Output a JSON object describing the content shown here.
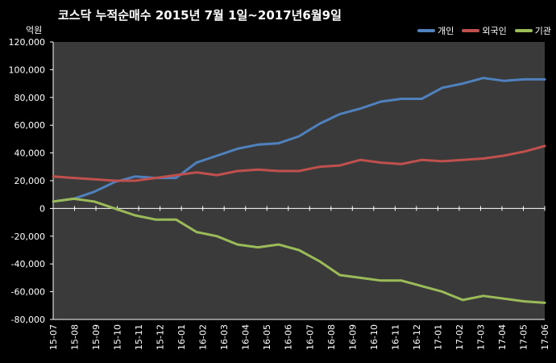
{
  "chart_data": {
    "type": "line",
    "title": "코스닥  누적순매수 2015년 7월 1일~2017년6월9일",
    "y_unit_label": "억원",
    "ylim": [
      -80000,
      120000
    ],
    "y_ticks": [
      -80000,
      -60000,
      -40000,
      -20000,
      0,
      20000,
      40000,
      60000,
      80000,
      100000,
      120000
    ],
    "y_tick_labels": [
      "-80,000",
      "-60,000",
      "-40,000",
      "-20,000",
      "0",
      "20,000",
      "40,000",
      "60,000",
      "80,000",
      "100,000",
      "120,000"
    ],
    "x_tick_labels": [
      "15-07",
      "15-08",
      "15-09",
      "15-10",
      "15-11",
      "15-12",
      "16-01",
      "16-02",
      "16-03",
      "16-04",
      "16-05",
      "16-06",
      "16-07",
      "16-08",
      "16-09",
      "16-10",
      "16-11",
      "16-12",
      "17-01",
      "17-02",
      "17-03",
      "17-04",
      "17-05",
      "17-06"
    ],
    "legend_position": "top-right",
    "grid": false,
    "colors": {
      "background": "#000000",
      "plot_area": "#3a3a3a",
      "text": "#ffffff"
    },
    "series": [
      {
        "name": "개인",
        "color": "#4f81bd",
        "values": [
          5000,
          7000,
          12000,
          19000,
          23000,
          22000,
          22000,
          33000,
          38000,
          43000,
          46000,
          47000,
          52000,
          61000,
          68000,
          72000,
          77000,
          79000,
          79000,
          87000,
          90000,
          94000,
          92000,
          93000,
          93000
        ]
      },
      {
        "name": "외국인",
        "color": "#c0504d",
        "values": [
          23000,
          22000,
          21000,
          20000,
          20000,
          22000,
          24000,
          26000,
          24000,
          27000,
          28000,
          27000,
          27000,
          30000,
          31000,
          35000,
          33000,
          32000,
          35000,
          34000,
          35000,
          36000,
          38000,
          41000,
          45000
        ]
      },
      {
        "name": "기관",
        "color": "#9bbb59",
        "values": [
          5000,
          7000,
          5000,
          0,
          -5000,
          -8000,
          -8000,
          -17000,
          -20000,
          -26000,
          -28000,
          -26000,
          -30000,
          -38000,
          -48000,
          -50000,
          -52000,
          -52000,
          -56000,
          -60000,
          -66000,
          -63000,
          -65000,
          -67000,
          -68000
        ]
      }
    ]
  }
}
